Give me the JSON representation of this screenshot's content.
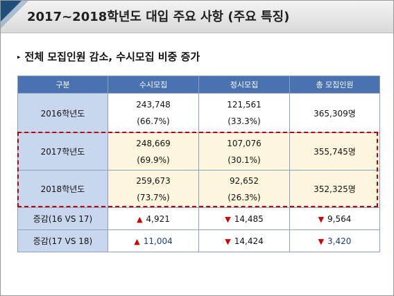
{
  "title": "2017~2018학년도 대입 주요 사항 (주요 특징)",
  "subtitle": "전체 모집인원 감소, 수시모집 비중 증가",
  "bullet": "▸",
  "table": {
    "headers": [
      "구분",
      "수시모집",
      "정시모집",
      "총 모집인원"
    ],
    "rows": [
      {
        "label": "2016학년도",
        "susi": "243,748",
        "susi_pct": "(66.7%)",
        "jeongsi": "121,561",
        "jeongsi_pct": "(33.3%)",
        "total": "365,309명"
      },
      {
        "label": "2017학년도",
        "susi": "248,669",
        "susi_pct": "(69.9%)",
        "jeongsi": "107,076",
        "jeongsi_pct": "(30.1%)",
        "total": "355,745명"
      },
      {
        "label": "2018학년도",
        "susi": "259,673",
        "susi_pct": "(73.7%)",
        "jeongsi": "92,652",
        "jeongsi_pct": "(26.3%)",
        "total": "352,325명"
      }
    ],
    "diff_rows": [
      {
        "label": "증감(16 VS 17)",
        "susi": "4,921",
        "jeongsi": "14,485",
        "total": "9,564"
      },
      {
        "label": "증감(17 VS 18)",
        "susi": "11,004",
        "jeongsi": "14,424",
        "total": "3,420"
      }
    ],
    "up_symbol": "▲",
    "down_symbol": "▼"
  },
  "colors": {
    "header": "#4a72b0",
    "label_cell": "#c9d7ee",
    "highlight": "#fdf6de",
    "dash": "#c00000",
    "arrow": "#d00000",
    "emphasis_text": "#1f3c88"
  }
}
